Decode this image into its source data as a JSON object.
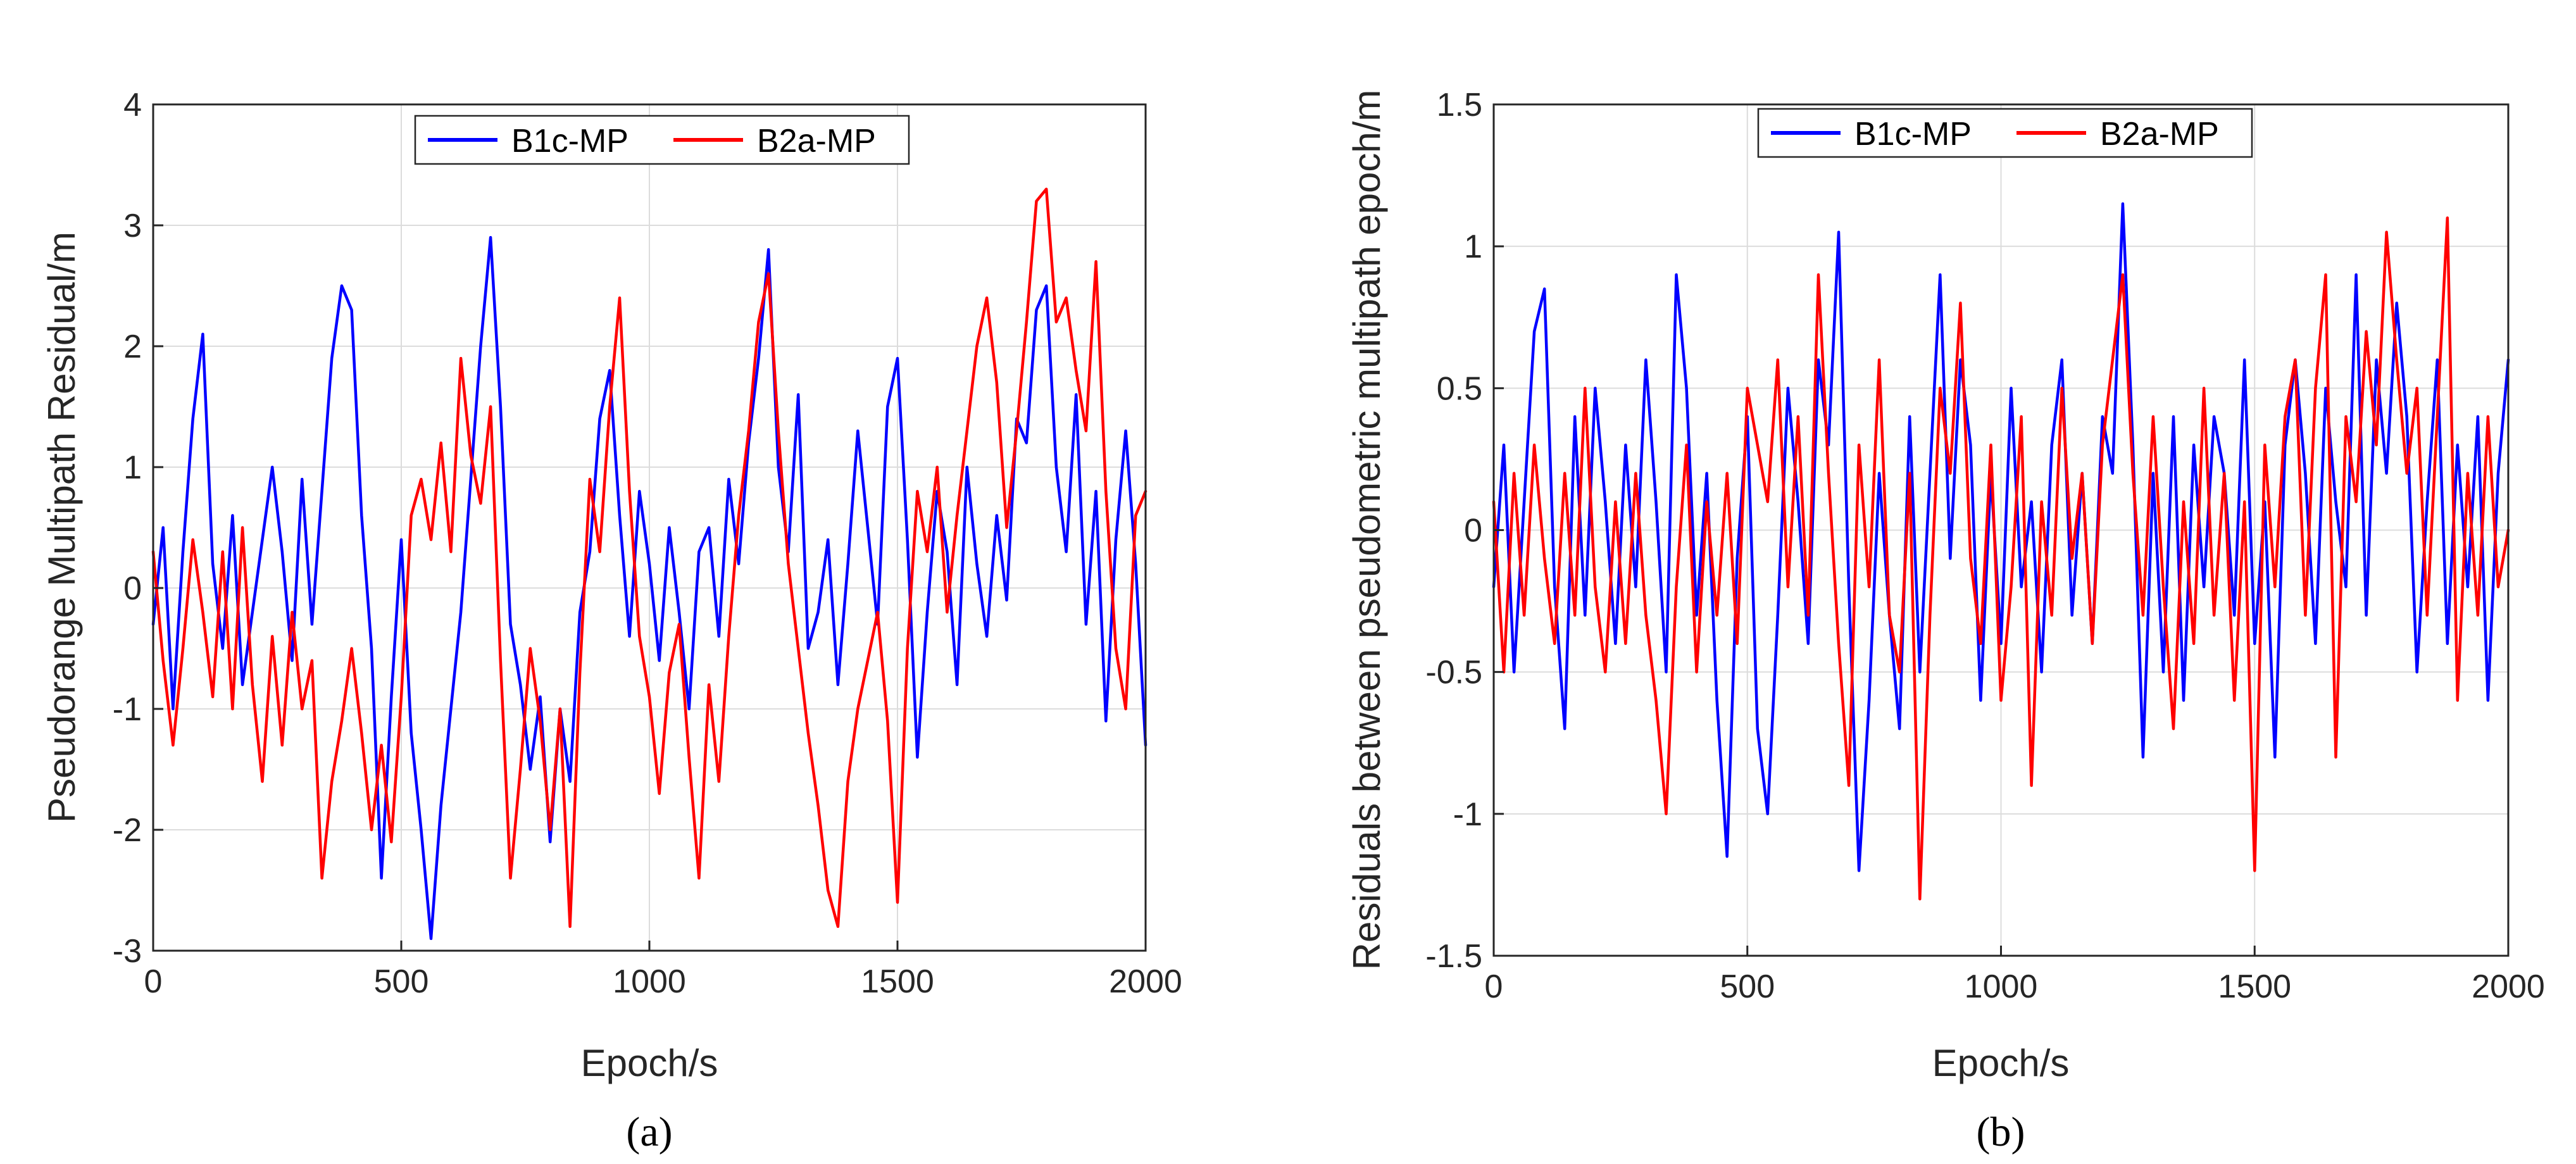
{
  "chart_data": [
    {
      "type": "line",
      "id": "a",
      "caption": "(a)",
      "title": "",
      "xlabel": "Epoch/s",
      "ylabel": "Pseudorange Multipath Residual/m",
      "xlim": [
        0,
        2000
      ],
      "ylim": [
        -3,
        4
      ],
      "xticks": [
        0,
        500,
        1000,
        1500,
        2000
      ],
      "yticks": [
        -3,
        -2,
        -1,
        0,
        1,
        2,
        3,
        4
      ],
      "grid": true,
      "legend_position": "top-center",
      "series": [
        {
          "name": "B1c-MP",
          "color": "#0000ff",
          "x": [
            0,
            20,
            40,
            60,
            80,
            100,
            120,
            140,
            160,
            180,
            200,
            220,
            240,
            260,
            280,
            300,
            320,
            340,
            360,
            380,
            400,
            420,
            440,
            460,
            480,
            500,
            520,
            540,
            560,
            580,
            600,
            620,
            640,
            660,
            680,
            700,
            720,
            740,
            760,
            780,
            800,
            820,
            840,
            860,
            880,
            900,
            920,
            940,
            960,
            980,
            1000,
            1020,
            1040,
            1060,
            1080,
            1100,
            1120,
            1140,
            1160,
            1180,
            1200,
            1220,
            1240,
            1260,
            1280,
            1300,
            1320,
            1340,
            1360,
            1380,
            1400,
            1420,
            1440,
            1460,
            1480,
            1500,
            1520,
            1540,
            1560,
            1580,
            1600,
            1620,
            1640,
            1660,
            1680,
            1700,
            1720,
            1740,
            1760,
            1780,
            1800,
            1820,
            1840,
            1860,
            1880,
            1900,
            1920,
            1940,
            1960,
            1980,
            2000
          ],
          "values": [
            -0.3,
            0.5,
            -1.0,
            0.3,
            1.4,
            2.1,
            0.2,
            -0.5,
            0.6,
            -0.8,
            -0.2,
            0.4,
            1.0,
            0.3,
            -0.6,
            0.9,
            -0.3,
            0.8,
            1.9,
            2.5,
            2.3,
            0.6,
            -0.5,
            -2.4,
            -0.9,
            0.4,
            -1.2,
            -2.0,
            -2.9,
            -1.8,
            -1.0,
            -0.2,
            0.9,
            2.0,
            2.9,
            1.5,
            -0.3,
            -0.8,
            -1.5,
            -0.9,
            -2.1,
            -1.0,
            -1.6,
            -0.2,
            0.3,
            1.4,
            1.8,
            0.6,
            -0.4,
            0.8,
            0.2,
            -0.6,
            0.5,
            -0.2,
            -1.0,
            0.3,
            0.5,
            -0.4,
            0.9,
            0.2,
            1.2,
            1.9,
            2.8,
            1.0,
            0.3,
            1.6,
            -0.5,
            -0.2,
            0.4,
            -0.8,
            0.2,
            1.3,
            0.5,
            -0.3,
            1.5,
            1.9,
            0.4,
            -1.4,
            -0.2,
            0.8,
            0.3,
            -0.8,
            1.0,
            0.2,
            -0.4,
            0.6,
            -0.1,
            1.4,
            1.2,
            2.3,
            2.5,
            1.0,
            0.3,
            1.6,
            -0.3,
            0.8,
            -1.1,
            0.4,
            1.3,
            0.2,
            -1.3
          ]
        },
        {
          "name": "B2a-MP",
          "color": "#ff0000",
          "x": [
            0,
            20,
            40,
            60,
            80,
            100,
            120,
            140,
            160,
            180,
            200,
            220,
            240,
            260,
            280,
            300,
            320,
            340,
            360,
            380,
            400,
            420,
            440,
            460,
            480,
            500,
            520,
            540,
            560,
            580,
            600,
            620,
            640,
            660,
            680,
            700,
            720,
            740,
            760,
            780,
            800,
            820,
            840,
            860,
            880,
            900,
            920,
            940,
            960,
            980,
            1000,
            1020,
            1040,
            1060,
            1080,
            1100,
            1120,
            1140,
            1160,
            1180,
            1200,
            1220,
            1240,
            1260,
            1280,
            1300,
            1320,
            1340,
            1360,
            1380,
            1400,
            1420,
            1440,
            1460,
            1480,
            1500,
            1520,
            1540,
            1560,
            1580,
            1600,
            1620,
            1640,
            1660,
            1680,
            1700,
            1720,
            1740,
            1760,
            1780,
            1800,
            1820,
            1840,
            1860,
            1880,
            1900,
            1920,
            1940,
            1960,
            1980,
            2000
          ],
          "values": [
            0.3,
            -0.6,
            -1.3,
            -0.5,
            0.4,
            -0.2,
            -0.9,
            0.3,
            -1.0,
            0.5,
            -0.8,
            -1.6,
            -0.4,
            -1.3,
            -0.2,
            -1.0,
            -0.6,
            -2.4,
            -1.6,
            -1.1,
            -0.5,
            -1.2,
            -2.0,
            -1.3,
            -2.1,
            -0.9,
            0.6,
            0.9,
            0.4,
            1.2,
            0.3,
            1.9,
            1.1,
            0.7,
            1.5,
            -0.6,
            -2.4,
            -1.5,
            -0.5,
            -1.1,
            -2.0,
            -1.0,
            -2.8,
            -0.7,
            0.9,
            0.3,
            1.5,
            2.4,
            0.8,
            -0.4,
            -0.9,
            -1.7,
            -0.7,
            -0.3,
            -1.4,
            -2.4,
            -0.8,
            -1.6,
            -0.4,
            0.6,
            1.3,
            2.2,
            2.6,
            1.3,
            0.2,
            -0.5,
            -1.2,
            -1.8,
            -2.5,
            -2.8,
            -1.6,
            -1.0,
            -0.6,
            -0.2,
            -1.1,
            -2.6,
            -0.5,
            0.8,
            0.3,
            1.0,
            -0.2,
            0.6,
            1.3,
            2.0,
            2.4,
            1.7,
            0.5,
            1.3,
            2.2,
            3.2,
            3.3,
            2.2,
            2.4,
            1.8,
            1.3,
            2.7,
            0.8,
            -0.5,
            -1.0,
            0.6,
            0.8
          ]
        }
      ]
    },
    {
      "type": "line",
      "id": "b",
      "caption": "(b)",
      "title": "",
      "xlabel": "Epoch/s",
      "ylabel": "Residuals between pseudometric multipath epoch/m",
      "xlim": [
        0,
        2000
      ],
      "ylim": [
        -1.5,
        1.5
      ],
      "xticks": [
        0,
        500,
        1000,
        1500,
        2000
      ],
      "yticks": [
        -1.5,
        -1,
        -0.5,
        0,
        0.5,
        1,
        1.5
      ],
      "grid": true,
      "legend_position": "top-center",
      "series": [
        {
          "name": "B1c-MP",
          "color": "#0000ff",
          "x": [
            0,
            20,
            40,
            60,
            80,
            100,
            120,
            140,
            160,
            180,
            200,
            220,
            240,
            260,
            280,
            300,
            320,
            340,
            360,
            380,
            400,
            420,
            440,
            460,
            480,
            500,
            520,
            540,
            560,
            580,
            600,
            620,
            640,
            660,
            680,
            700,
            720,
            740,
            760,
            780,
            800,
            820,
            840,
            860,
            880,
            900,
            920,
            940,
            960,
            980,
            1000,
            1020,
            1040,
            1060,
            1080,
            1100,
            1120,
            1140,
            1160,
            1180,
            1200,
            1220,
            1240,
            1260,
            1280,
            1300,
            1320,
            1340,
            1360,
            1380,
            1400,
            1420,
            1440,
            1460,
            1480,
            1500,
            1520,
            1540,
            1560,
            1580,
            1600,
            1620,
            1640,
            1660,
            1680,
            1700,
            1720,
            1740,
            1760,
            1780,
            1800,
            1820,
            1840,
            1860,
            1880,
            1900,
            1920,
            1940,
            1960,
            1980,
            2000
          ],
          "values": [
            -0.2,
            0.3,
            -0.5,
            0.1,
            0.7,
            0.85,
            -0.2,
            -0.7,
            0.4,
            -0.3,
            0.5,
            0.1,
            -0.4,
            0.3,
            -0.2,
            0.6,
            0.1,
            -0.5,
            0.9,
            0.5,
            -0.3,
            0.2,
            -0.6,
            -1.15,
            -0.1,
            0.4,
            -0.7,
            -1.0,
            -0.3,
            0.5,
            0.1,
            -0.4,
            0.6,
            0.3,
            1.05,
            -0.2,
            -1.2,
            -0.6,
            0.2,
            -0.3,
            -0.7,
            0.4,
            -0.5,
            0.2,
            0.9,
            -0.1,
            0.6,
            0.3,
            -0.6,
            0.2,
            -0.4,
            0.5,
            -0.2,
            0.1,
            -0.5,
            0.3,
            0.6,
            -0.3,
            0.2,
            -0.4,
            0.4,
            0.2,
            1.15,
            0.3,
            -0.8,
            0.2,
            -0.5,
            0.4,
            -0.6,
            0.3,
            -0.2,
            0.4,
            0.2,
            -0.3,
            0.6,
            -0.4,
            0.1,
            -0.8,
            0.3,
            0.6,
            0.2,
            -0.4,
            0.5,
            0.1,
            -0.2,
            0.9,
            -0.3,
            0.6,
            0.2,
            0.8,
            0.4,
            -0.5,
            0.1,
            0.6,
            -0.4,
            0.3,
            -0.2,
            0.4,
            -0.6,
            0.2,
            0.6
          ]
        },
        {
          "name": "B2a-MP",
          "color": "#ff0000",
          "x": [
            0,
            20,
            40,
            60,
            80,
            100,
            120,
            140,
            160,
            180,
            200,
            220,
            240,
            260,
            280,
            300,
            320,
            340,
            360,
            380,
            400,
            420,
            440,
            460,
            480,
            500,
            520,
            540,
            560,
            580,
            600,
            620,
            640,
            660,
            680,
            700,
            720,
            740,
            760,
            780,
            800,
            820,
            840,
            860,
            880,
            900,
            920,
            940,
            960,
            980,
            1000,
            1020,
            1040,
            1060,
            1080,
            1100,
            1120,
            1140,
            1160,
            1180,
            1200,
            1220,
            1240,
            1260,
            1280,
            1300,
            1320,
            1340,
            1360,
            1380,
            1400,
            1420,
            1440,
            1460,
            1480,
            1500,
            1520,
            1540,
            1560,
            1580,
            1600,
            1620,
            1640,
            1660,
            1680,
            1700,
            1720,
            1740,
            1760,
            1780,
            1800,
            1820,
            1840,
            1860,
            1880,
            1900,
            1920,
            1940,
            1960,
            1980,
            2000
          ],
          "values": [
            0.1,
            -0.5,
            0.2,
            -0.3,
            0.3,
            -0.1,
            -0.4,
            0.2,
            -0.3,
            0.5,
            -0.2,
            -0.5,
            0.1,
            -0.4,
            0.2,
            -0.3,
            -0.6,
            -1.0,
            -0.2,
            0.3,
            -0.5,
            0.1,
            -0.3,
            0.2,
            -0.4,
            0.5,
            0.3,
            0.1,
            0.6,
            -0.2,
            0.4,
            -0.3,
            0.9,
            0.2,
            -0.4,
            -0.9,
            0.3,
            -0.2,
            0.6,
            -0.3,
            -0.5,
            0.2,
            -1.3,
            -0.3,
            0.5,
            0.2,
            0.8,
            -0.1,
            -0.4,
            0.3,
            -0.6,
            -0.2,
            0.4,
            -0.9,
            0.1,
            -0.3,
            0.5,
            -0.1,
            0.2,
            -0.4,
            0.3,
            0.6,
            0.9,
            0.2,
            -0.3,
            0.4,
            -0.2,
            -0.7,
            0.1,
            -0.4,
            0.5,
            -0.3,
            0.2,
            -0.6,
            0.1,
            -1.2,
            0.3,
            -0.2,
            0.4,
            0.6,
            -0.3,
            0.5,
            0.9,
            -0.8,
            0.4,
            0.1,
            0.7,
            0.3,
            1.05,
            0.6,
            0.2,
            0.5,
            -0.3,
            0.4,
            1.1,
            -0.6,
            0.2,
            -0.3,
            0.4,
            -0.2,
            0.0
          ]
        }
      ]
    }
  ]
}
